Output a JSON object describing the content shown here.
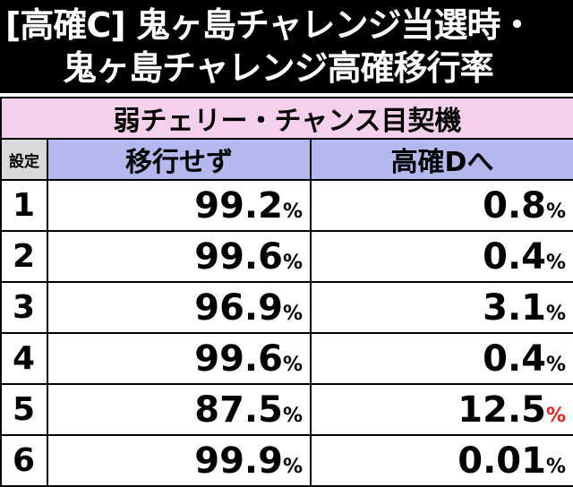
{
  "title": {
    "line1": "[高確C] 鬼ヶ島チャレンジ当選時・",
    "line2": "鬼ヶ島チャレンジ高確移行率"
  },
  "table": {
    "machine_label": "弱チェリー・チャンス目契機",
    "headers": {
      "setting": "設定",
      "no_move": "移行せず",
      "to_d": "高確Dへ"
    },
    "rows": [
      {
        "setting": "1",
        "no_move": "99.2",
        "to_d": "0.8"
      },
      {
        "setting": "2",
        "no_move": "99.6",
        "to_d": "0.4"
      },
      {
        "setting": "3",
        "no_move": "96.9",
        "to_d": "3.1"
      },
      {
        "setting": "4",
        "no_move": "99.6",
        "to_d": "0.4"
      },
      {
        "setting": "5",
        "no_move": "87.5",
        "to_d": "12.5"
      },
      {
        "setting": "6",
        "no_move": "99.9",
        "to_d": "0.01"
      }
    ],
    "percent_sign": "%",
    "highlight_color": "#e8201e"
  }
}
